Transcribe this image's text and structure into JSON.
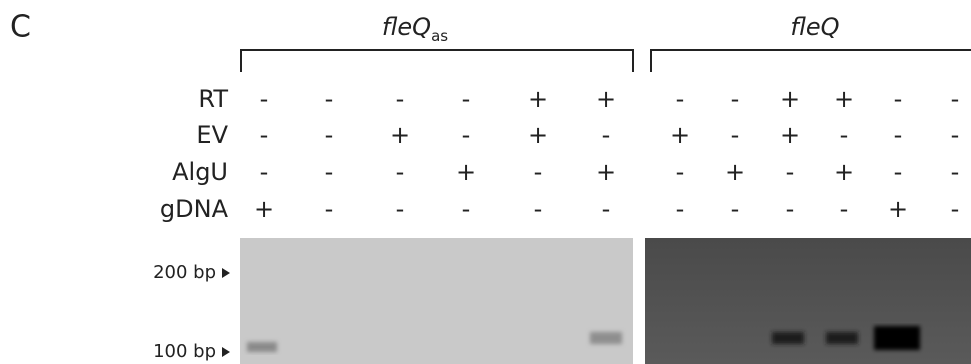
{
  "panel": "C",
  "groups": [
    {
      "label": "fleQ",
      "subscript": "as"
    },
    {
      "label": "fleQ"
    }
  ],
  "rows": [
    {
      "label": "RT",
      "signs": [
        "-",
        "-",
        "-",
        "-",
        "+",
        "+",
        "-",
        "-",
        "+",
        "+",
        "-",
        "-"
      ]
    },
    {
      "label": "EV",
      "signs": [
        "-",
        "-",
        "+",
        "-",
        "+",
        "-",
        "+",
        "-",
        "+",
        "-",
        "-",
        "-"
      ]
    },
    {
      "label": "AlgU",
      "signs": [
        "-",
        "-",
        "-",
        "+",
        "-",
        "+",
        "-",
        "+",
        "-",
        "+",
        "-",
        "-"
      ]
    },
    {
      "label": "gDNA",
      "signs": [
        "+",
        "-",
        "-",
        "-",
        "-",
        "-",
        "-",
        "-",
        "-",
        "-",
        "+",
        "-"
      ]
    }
  ],
  "markers": [
    "200 bp",
    "100 bp"
  ]
}
